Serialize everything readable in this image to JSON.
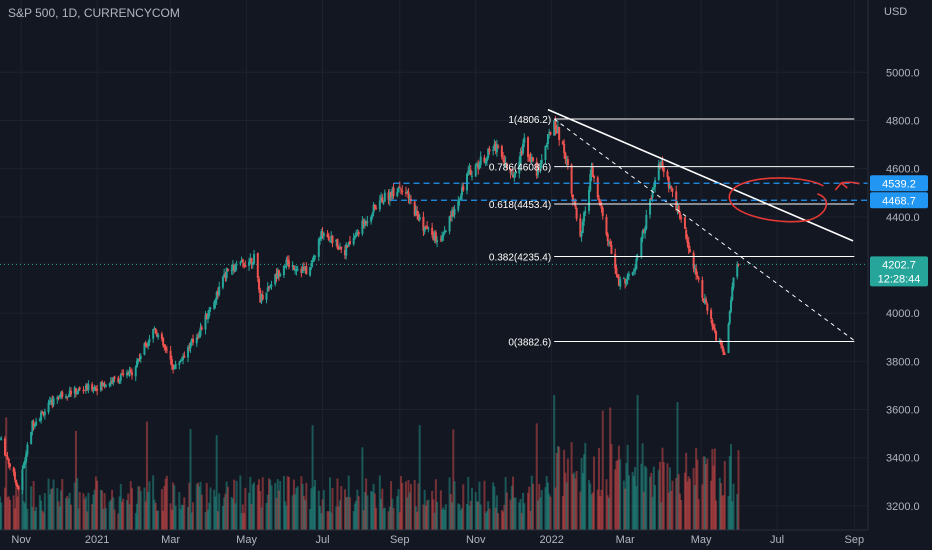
{
  "header": {
    "symbol": "S&P 500, 1D, CURRENCYCOM",
    "currency": "USD"
  },
  "colors": {
    "background": "#131722",
    "up": "#26a69a",
    "down": "#ef5350",
    "axis_text": "#b2b5be",
    "grid": "#1e222d",
    "fib_line": "#ffffff",
    "level_line": "#2196f3",
    "badge_blue": "#2196f3",
    "badge_teal": "#26a69a",
    "annotation_red": "#e53935"
  },
  "chart_data": {
    "type": "candlestick",
    "title": "S&P 500, 1D, CURRENCYCOM",
    "ylabel": "USD",
    "ylim": [
      3100,
      5300
    ],
    "y_ticks": [
      "5000.0",
      "4800.0",
      "4600.0",
      "4400.0",
      "4000.0",
      "3800.0",
      "3600.0",
      "3400.0",
      "3200.0"
    ],
    "x_range": [
      "2020-10-15",
      "2022-09-12"
    ],
    "x_ticks": [
      {
        "label": "Nov",
        "date": "2020-11-01"
      },
      {
        "label": "2021",
        "date": "2021-01-01"
      },
      {
        "label": "Mar",
        "date": "2021-03-01"
      },
      {
        "label": "May",
        "date": "2021-05-01"
      },
      {
        "label": "Jul",
        "date": "2021-07-01"
      },
      {
        "label": "Sep",
        "date": "2021-09-01"
      },
      {
        "label": "Nov",
        "date": "2021-11-01"
      },
      {
        "label": "2022",
        "date": "2022-01-01"
      },
      {
        "label": "Mar",
        "date": "2022-03-01"
      },
      {
        "label": "May",
        "date": "2022-05-01"
      },
      {
        "label": "Jul",
        "date": "2022-07-01"
      },
      {
        "label": "Sep",
        "date": "2022-09-01"
      }
    ],
    "price_path": [
      [
        "2020-10-15",
        3480
      ],
      [
        "2020-10-30",
        3270
      ],
      [
        "2020-11-10",
        3540
      ],
      [
        "2020-12-01",
        3660
      ],
      [
        "2021-01-04",
        3700
      ],
      [
        "2021-01-28",
        3750
      ],
      [
        "2021-02-16",
        3940
      ],
      [
        "2021-03-04",
        3770
      ],
      [
        "2021-03-25",
        3930
      ],
      [
        "2021-04-15",
        4170
      ],
      [
        "2021-05-07",
        4230
      ],
      [
        "2021-05-12",
        4060
      ],
      [
        "2021-06-01",
        4210
      ],
      [
        "2021-06-20",
        4170
      ],
      [
        "2021-07-01",
        4340
      ],
      [
        "2021-07-19",
        4260
      ],
      [
        "2021-08-15",
        4460
      ],
      [
        "2021-09-02",
        4530
      ],
      [
        "2021-09-20",
        4360
      ],
      [
        "2021-10-04",
        4290
      ],
      [
        "2021-10-25",
        4570
      ],
      [
        "2021-11-18",
        4700
      ],
      [
        "2021-11-30",
        4560
      ],
      [
        "2021-12-10",
        4710
      ],
      [
        "2021-12-20",
        4580
      ],
      [
        "2022-01-03",
        4800
      ],
      [
        "2022-01-13",
        4640
      ],
      [
        "2022-01-24",
        4300
      ],
      [
        "2022-02-02",
        4590
      ],
      [
        "2022-02-24",
        4120
      ],
      [
        "2022-03-08",
        4170
      ],
      [
        "2022-03-29",
        4630
      ],
      [
        "2022-04-15",
        4390
      ],
      [
        "2022-04-29",
        4130
      ],
      [
        "2022-05-12",
        3910
      ],
      [
        "2022-05-20",
        3830
      ],
      [
        "2022-05-27",
        4160
      ],
      [
        "2022-06-01",
        4202.7
      ]
    ],
    "volume_range": [
      0,
      1
    ],
    "annotations": {
      "fibonacci": [
        {
          "label": "1(4806.2)",
          "value": 4806.2
        },
        {
          "label": "0.786(4608.6)",
          "value": 4608.6
        },
        {
          "label": "0.618(4453.4)",
          "value": 4453.4
        },
        {
          "label": "0.382(4235.4)",
          "value": 4235.4
        },
        {
          "label": "0(3882.6)",
          "value": 3882.6
        }
      ],
      "fib_start": "2022-01-03",
      "fib_end": "2022-09-01",
      "trendlines": [
        {
          "style": "solid",
          "from": [
            "2021-12-29",
            4845
          ],
          "to": [
            "2022-08-31",
            4300
          ]
        },
        {
          "style": "dashed",
          "from": [
            "2022-01-03",
            4806.2
          ],
          "to": [
            "2022-09-02",
            3882.6
          ]
        }
      ],
      "horizontal_levels": [
        {
          "label": "4539.2",
          "value": 4539.2,
          "from": "2021-08-27"
        },
        {
          "label": "4468.7",
          "value": 4468.7,
          "from": "2021-08-25"
        }
      ],
      "last_price": {
        "value": 4202.7,
        "label": "4202.7",
        "countdown": "12:28:44"
      },
      "circle_center": [
        "2022-06-28",
        4470
      ]
    }
  }
}
